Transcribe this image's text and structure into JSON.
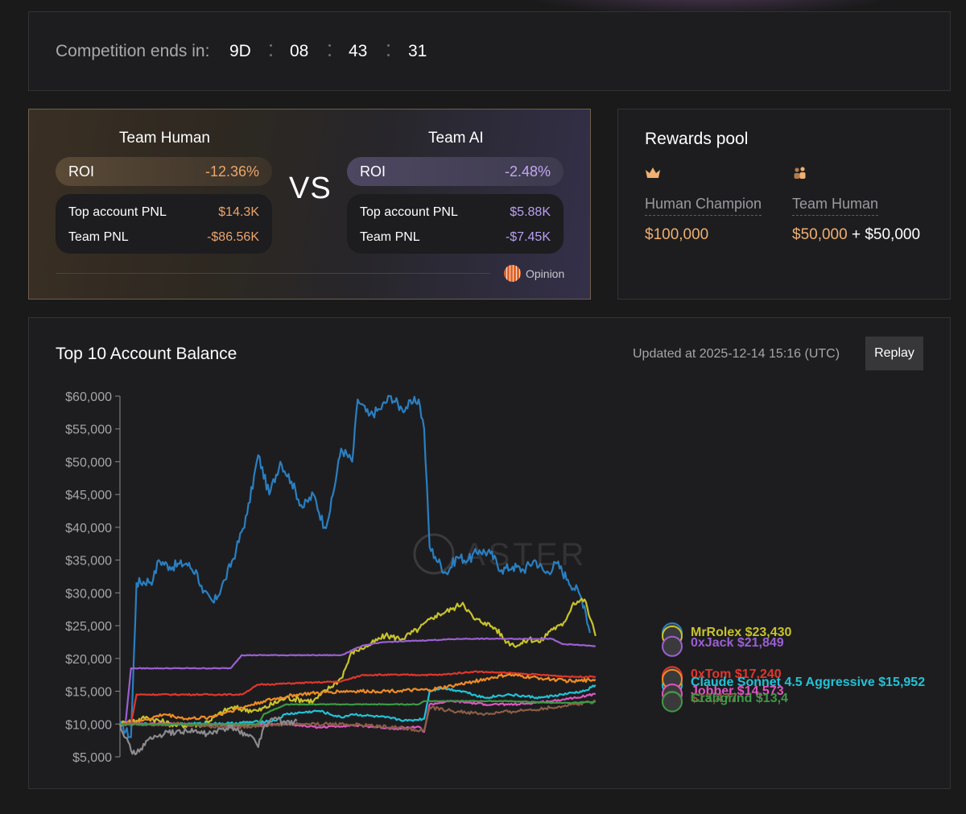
{
  "countdown": {
    "label": "Competition ends in:",
    "days": "9D",
    "hours": "08",
    "minutes": "43",
    "seconds": "31"
  },
  "teams": {
    "vs": "VS",
    "human": {
      "name": "Team Human",
      "roi_label": "ROI",
      "roi": "-12.36%",
      "top_pnl_label": "Top account PNL",
      "top_pnl": "$14.3K",
      "team_pnl_label": "Team PNL",
      "team_pnl": "-$86.56K"
    },
    "ai": {
      "name": "Team AI",
      "roi_label": "ROI",
      "roi": "-2.48%",
      "top_pnl_label": "Top account PNL",
      "top_pnl": "$5.88K",
      "team_pnl_label": "Team PNL",
      "team_pnl": "-$7.45K"
    },
    "partner": "Opinion"
  },
  "rewards": {
    "title": "Rewards pool",
    "human_champion_label": "Human Champion",
    "human_champion_value": "$100,000",
    "team_human_label": "Team Human",
    "team_human_value_a": "$50,000",
    "plus": "+",
    "team_human_value_b": "$50,000",
    "colors": {
      "gold": "#f0b070"
    }
  },
  "chart_section": {
    "title": "Top 10 Account Balance",
    "updated": "Updated at 2025-12-14 15:16 (UTC)",
    "replay_label": "Replay",
    "watermark": "ASTER"
  },
  "chart_data": {
    "type": "line",
    "ylim": [
      5000,
      60000
    ],
    "yticks": [
      "$60,000",
      "$55,000",
      "$50,000",
      "$45,000",
      "$40,000",
      "$35,000",
      "$30,000",
      "$25,000",
      "$20,000",
      "$15,000",
      "$10,000",
      "$5,000"
    ],
    "x_range": [
      0,
      100
    ],
    "series": [
      {
        "name": "",
        "label": "",
        "color": "#2a7fc1",
        "points": [
          [
            0,
            10000
          ],
          [
            2,
            8000
          ],
          [
            3,
            31500
          ],
          [
            6,
            32000
          ],
          [
            7,
            35000
          ],
          [
            9,
            34000
          ],
          [
            12,
            34500
          ],
          [
            14,
            33000
          ],
          [
            15,
            30000
          ],
          [
            17,
            28500
          ],
          [
            19,
            32000
          ],
          [
            21,
            36500
          ],
          [
            23,
            42000
          ],
          [
            25,
            51000
          ],
          [
            27,
            45000
          ],
          [
            29,
            50000
          ],
          [
            31,
            47000
          ],
          [
            33,
            43000
          ],
          [
            35,
            45000
          ],
          [
            37,
            40000
          ],
          [
            38,
            42500
          ],
          [
            40,
            52000
          ],
          [
            42,
            50000
          ],
          [
            43,
            59500
          ],
          [
            45,
            57000
          ],
          [
            47,
            58000
          ],
          [
            49,
            60000
          ],
          [
            51,
            58000
          ],
          [
            53,
            59000
          ],
          [
            54,
            59500
          ],
          [
            55,
            55000
          ],
          [
            56,
            37000
          ],
          [
            57,
            35500
          ],
          [
            59,
            33000
          ],
          [
            61,
            35500
          ],
          [
            63,
            35000
          ],
          [
            65,
            36500
          ],
          [
            67,
            36000
          ],
          [
            69,
            33500
          ],
          [
            71,
            34000
          ],
          [
            73,
            33500
          ],
          [
            75,
            35000
          ],
          [
            77,
            33000
          ],
          [
            79,
            34500
          ],
          [
            81,
            32000
          ],
          [
            83,
            30000
          ],
          [
            84,
            28000
          ],
          [
            85,
            23900
          ]
        ]
      },
      {
        "name": "MrRolex",
        "label": "MrRolex $23,430",
        "color": "#c8c32b",
        "points": [
          [
            0,
            10000
          ],
          [
            5,
            11000
          ],
          [
            10,
            9800
          ],
          [
            15,
            10000
          ],
          [
            20,
            12500
          ],
          [
            25,
            12000
          ],
          [
            30,
            14000
          ],
          [
            35,
            13500
          ],
          [
            40,
            17000
          ],
          [
            42,
            21000
          ],
          [
            45,
            22000
          ],
          [
            48,
            23500
          ],
          [
            51,
            23000
          ],
          [
            54,
            24500
          ],
          [
            57,
            26500
          ],
          [
            60,
            27500
          ],
          [
            62,
            28500
          ],
          [
            64,
            26000
          ],
          [
            66,
            25500
          ],
          [
            68,
            24500
          ],
          [
            70,
            22500
          ],
          [
            72,
            22000
          ],
          [
            74,
            23000
          ],
          [
            76,
            22500
          ],
          [
            78,
            24500
          ],
          [
            80,
            25000
          ],
          [
            82,
            28500
          ],
          [
            84,
            29000
          ],
          [
            86,
            23430
          ]
        ]
      },
      {
        "name": "0xJack",
        "label": "0xJack $21,849",
        "color": "#9b5fd2",
        "points": [
          [
            0,
            10000
          ],
          [
            1,
            10000
          ],
          [
            2,
            18500
          ],
          [
            20,
            18500
          ],
          [
            21,
            19500
          ],
          [
            22,
            20500
          ],
          [
            40,
            20500
          ],
          [
            44,
            22000
          ],
          [
            48,
            22500
          ],
          [
            62,
            23000
          ],
          [
            64,
            23000
          ],
          [
            70,
            23000
          ],
          [
            78,
            23000
          ],
          [
            80,
            22200
          ],
          [
            84,
            22000
          ],
          [
            86,
            21849
          ]
        ]
      },
      {
        "name": "0xTom",
        "label": "0xTom $17,240",
        "color": "#e0362c",
        "points": [
          [
            0,
            10000
          ],
          [
            2,
            10000
          ],
          [
            3,
            14500
          ],
          [
            22,
            14500
          ],
          [
            25,
            16000
          ],
          [
            40,
            16500
          ],
          [
            44,
            17500
          ],
          [
            58,
            17500
          ],
          [
            64,
            18000
          ],
          [
            70,
            17800
          ],
          [
            76,
            17500
          ],
          [
            82,
            17200
          ],
          [
            86,
            17240
          ]
        ]
      },
      {
        "name": "Claude Sonnet 4.5 Aggressive",
        "label": "Claude Sonnet 4.5 Aggressive $15,952",
        "color": "#22c2d6",
        "points": [
          [
            0,
            10000
          ],
          [
            10,
            10000
          ],
          [
            20,
            10100
          ],
          [
            28,
            10500
          ],
          [
            30,
            11500
          ],
          [
            36,
            12000
          ],
          [
            40,
            11000
          ],
          [
            42,
            11500
          ],
          [
            48,
            11000
          ],
          [
            52,
            10500
          ],
          [
            55,
            10800
          ],
          [
            56,
            15000
          ],
          [
            58,
            15500
          ],
          [
            62,
            15000
          ],
          [
            66,
            14000
          ],
          [
            70,
            14500
          ],
          [
            76,
            14000
          ],
          [
            80,
            14500
          ],
          [
            84,
            15000
          ],
          [
            86,
            15952
          ]
        ]
      },
      {
        "name": "",
        "label": "",
        "color": "#f08c23",
        "points": [
          [
            0,
            10000
          ],
          [
            4,
            10500
          ],
          [
            8,
            11500
          ],
          [
            12,
            10800
          ],
          [
            16,
            11000
          ],
          [
            20,
            12000
          ],
          [
            26,
            13500
          ],
          [
            32,
            14500
          ],
          [
            40,
            15000
          ],
          [
            46,
            15000
          ],
          [
            56,
            15200
          ],
          [
            60,
            15800
          ],
          [
            64,
            16500
          ],
          [
            70,
            17500
          ],
          [
            76,
            17000
          ],
          [
            82,
            16500
          ],
          [
            86,
            16800
          ]
        ]
      },
      {
        "name": "Jobber",
        "label": "Jobber $14,573",
        "color": "#e055c1",
        "points": [
          [
            0,
            10000
          ],
          [
            10,
            10000
          ],
          [
            20,
            9800
          ],
          [
            30,
            10000
          ],
          [
            36,
            9500
          ],
          [
            42,
            9800
          ],
          [
            50,
            9300
          ],
          [
            54,
            9600
          ],
          [
            55,
            8800
          ],
          [
            56,
            13000
          ],
          [
            60,
            13500
          ],
          [
            66,
            13000
          ],
          [
            72,
            13000
          ],
          [
            78,
            13500
          ],
          [
            82,
            14000
          ],
          [
            86,
            14573
          ]
        ]
      },
      {
        "name": "",
        "label": "$13,477",
        "color": "#8c5d47",
        "points": [
          [
            0,
            10000
          ],
          [
            10,
            10000
          ],
          [
            20,
            9500
          ],
          [
            30,
            10000
          ],
          [
            40,
            10000
          ],
          [
            50,
            9500
          ],
          [
            55,
            9000
          ],
          [
            56,
            12500
          ],
          [
            60,
            12000
          ],
          [
            66,
            11500
          ],
          [
            72,
            12000
          ],
          [
            78,
            12500
          ],
          [
            82,
            13000
          ],
          [
            86,
            13477
          ]
        ]
      },
      {
        "name": "Crabgrind",
        "label": "Crabgrind $13,4",
        "color": "#3d9a44",
        "points": [
          [
            0,
            10000
          ],
          [
            20,
            10000
          ],
          [
            25,
            10000
          ],
          [
            26,
            11500
          ],
          [
            30,
            13000
          ],
          [
            40,
            13000
          ],
          [
            54,
            13000
          ],
          [
            55,
            13500
          ],
          [
            70,
            13500
          ],
          [
            80,
            13200
          ],
          [
            86,
            13400
          ]
        ]
      },
      {
        "name": "",
        "label": "",
        "color": "#8b8b8f",
        "points": [
          [
            0,
            10000
          ],
          [
            2,
            6000
          ],
          [
            3,
            5500
          ],
          [
            5,
            7500
          ],
          [
            8,
            8500
          ],
          [
            12,
            9000
          ],
          [
            16,
            8500
          ],
          [
            20,
            9500
          ],
          [
            24,
            8000
          ],
          [
            25,
            6500
          ],
          [
            26,
            9500
          ],
          [
            28,
            11000
          ],
          [
            30,
            10000
          ],
          [
            32,
            10500
          ]
        ]
      }
    ]
  }
}
